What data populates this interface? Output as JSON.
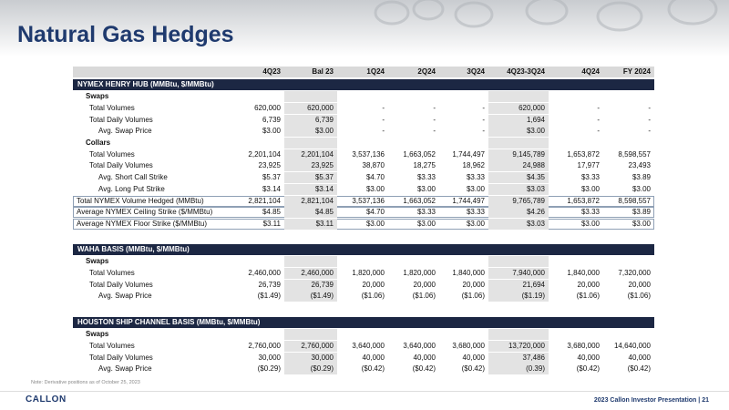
{
  "header": {
    "title": "Natural Gas Hedges"
  },
  "table": {
    "columns": [
      "4Q23",
      "Bal 23",
      "1Q24",
      "2Q24",
      "3Q24",
      "4Q23-3Q24",
      "4Q24",
      "FY 2024"
    ],
    "sections": [
      {
        "title": "NYMEX HENRY HUB (MMBtu, $/MMBtu)",
        "groups": [
          {
            "title": "Swaps",
            "rows": [
              {
                "label": "Total Volumes",
                "cells": [
                  "620,000",
                  "620,000",
                  "-",
                  "-",
                  "-",
                  "620,000",
                  "-",
                  "-"
                ]
              },
              {
                "label": "Total Daily Volumes",
                "cells": [
                  "6,739",
                  "6,739",
                  "-",
                  "-",
                  "-",
                  "1,694",
                  "-",
                  "-"
                ]
              }
            ],
            "prices": [
              {
                "label": "Avg. Swap Price",
                "cells": [
                  "$3.00",
                  "$3.00",
                  "-",
                  "-",
                  "-",
                  "$3.00",
                  "-",
                  "-"
                ]
              }
            ]
          },
          {
            "title": "Collars",
            "rows": [
              {
                "label": "Total Volumes",
                "cells": [
                  "2,201,104",
                  "2,201,104",
                  "3,537,136",
                  "1,663,052",
                  "1,744,497",
                  "9,145,789",
                  "1,653,872",
                  "8,598,557"
                ]
              },
              {
                "label": "Total Daily Volumes",
                "cells": [
                  "23,925",
                  "23,925",
                  "38,870",
                  "18,275",
                  "18,962",
                  "24,988",
                  "17,977",
                  "23,493"
                ]
              }
            ],
            "prices": [
              {
                "label": "Avg. Short Call Strike",
                "cells": [
                  "$5.37",
                  "$5.37",
                  "$4.70",
                  "$3.33",
                  "$3.33",
                  "$4.35",
                  "$3.33",
                  "$3.89"
                ]
              },
              {
                "label": "Avg. Long Put Strike",
                "cells": [
                  "$3.14",
                  "$3.14",
                  "$3.00",
                  "$3.00",
                  "$3.00",
                  "$3.03",
                  "$3.00",
                  "$3.00"
                ]
              }
            ]
          }
        ],
        "totals": [
          {
            "label": "Total NYMEX Volume Hedged (MMBtu)",
            "cells": [
              "2,821,104",
              "2,821,104",
              "3,537,136",
              "1,663,052",
              "1,744,497",
              "9,765,789",
              "1,653,872",
              "8,598,557"
            ]
          },
          {
            "label": "Average NYMEX Ceiling Strike ($/MMBtu)",
            "cells": [
              "$4.85",
              "$4.85",
              "$4.70",
              "$3.33",
              "$3.33",
              "$4.26",
              "$3.33",
              "$3.89"
            ]
          },
          {
            "label": "Average NYMEX Floor Strike ($/MMBtu)",
            "cells": [
              "$3.11",
              "$3.11",
              "$3.00",
              "$3.00",
              "$3.00",
              "$3.03",
              "$3.00",
              "$3.00"
            ]
          }
        ]
      },
      {
        "title": "WAHA BASIS (MMBtu, $/MMBtu)",
        "groups": [
          {
            "title": "Swaps",
            "rows": [
              {
                "label": "Total Volumes",
                "cells": [
                  "2,460,000",
                  "2,460,000",
                  "1,820,000",
                  "1,820,000",
                  "1,840,000",
                  "7,940,000",
                  "1,840,000",
                  "7,320,000"
                ]
              },
              {
                "label": "Total Daily Volumes",
                "cells": [
                  "26,739",
                  "26,739",
                  "20,000",
                  "20,000",
                  "20,000",
                  "21,694",
                  "20,000",
                  "20,000"
                ]
              }
            ],
            "prices": [
              {
                "label": "Avg. Swap Price",
                "cells": [
                  "($1.49)",
                  "($1.49)",
                  "($1.06)",
                  "($1.06)",
                  "($1.06)",
                  "($1.19)",
                  "($1.06)",
                  "($1.06)"
                ]
              }
            ]
          }
        ]
      },
      {
        "title": "HOUSTON SHIP CHANNEL BASIS (MMBtu, $/MMBtu)",
        "groups": [
          {
            "title": "Swaps",
            "rows": [
              {
                "label": "Total Volumes",
                "cells": [
                  "2,760,000",
                  "2,760,000",
                  "3,640,000",
                  "3,640,000",
                  "3,680,000",
                  "13,720,000",
                  "3,680,000",
                  "14,640,000"
                ]
              },
              {
                "label": "Total Daily Volumes",
                "cells": [
                  "30,000",
                  "30,000",
                  "40,000",
                  "40,000",
                  "40,000",
                  "37,486",
                  "40,000",
                  "40,000"
                ]
              }
            ],
            "prices": [
              {
                "label": "Avg. Swap Price",
                "cells": [
                  "($0.29)",
                  "($0.29)",
                  "($0.42)",
                  "($0.42)",
                  "($0.42)",
                  "(0.39)",
                  "($0.42)",
                  "($0.42)"
                ]
              }
            ]
          }
        ]
      }
    ]
  },
  "note": "Note: Derivative positions as of October 25, 2023",
  "footer": {
    "logo": "CALLON",
    "text": "2023 Callon Investor Presentation",
    "separator": "|",
    "page": "21"
  }
}
